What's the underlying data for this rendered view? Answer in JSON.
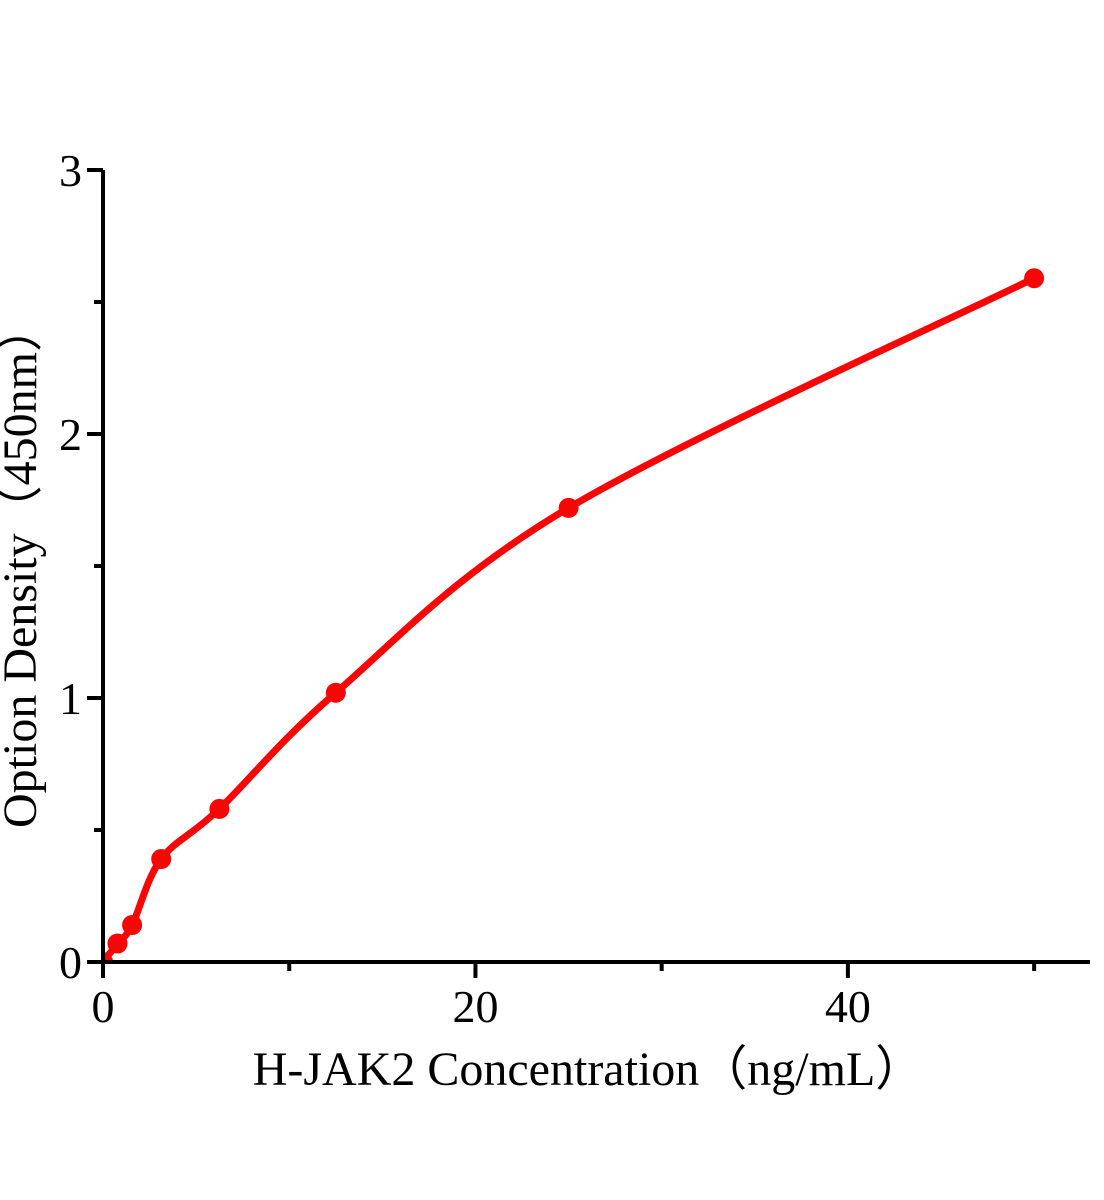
{
  "chart_data": {
    "type": "line",
    "title": "",
    "xlabel": "H-JAK2 Concentration（ng/mL）",
    "ylabel": "Option Density（450nm）",
    "x": [
      0,
      0.781,
      1.563,
      3.125,
      6.25,
      12.5,
      25,
      50
    ],
    "y": [
      0,
      0.07,
      0.14,
      0.39,
      0.58,
      1.02,
      1.72,
      2.59
    ],
    "xlim": [
      0,
      53
    ],
    "ylim": [
      0,
      3
    ],
    "x_major_ticks": [
      0,
      20,
      40
    ],
    "x_minor_ticks": [
      10,
      30,
      50
    ],
    "y_major_ticks": [
      0,
      1,
      2,
      3
    ],
    "y_minor_ticks": [
      0.5,
      1.5,
      2.5
    ],
    "grid": false,
    "legend": "none",
    "marker": "circle",
    "series_color": "#f80606",
    "axis_color": "#000000",
    "background_color": "#ffffff"
  }
}
